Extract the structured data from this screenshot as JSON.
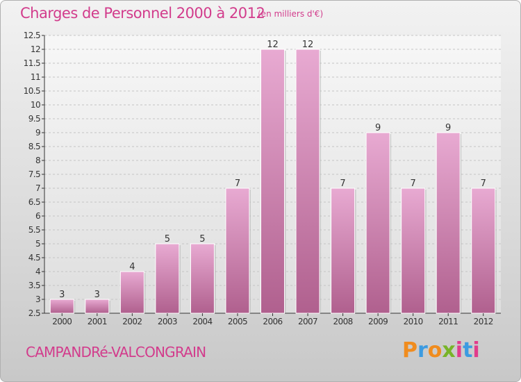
{
  "header": {
    "title": "Charges de Personnel 2000 à 2012",
    "unit": "(en milliers d'€)"
  },
  "footer": {
    "commune": "CAMPANDRé-VALCONGRAIN",
    "logo_text": "Proxiti"
  },
  "colors": {
    "accent": "#d23c8c",
    "bar_top": "#e8aad2",
    "bar_bottom": "#b0608e",
    "logo": [
      "#f08c1e",
      "#3c9be1",
      "#f08c1e",
      "#78b428",
      "#e13c8c",
      "#3c9be1",
      "#e13c8c"
    ]
  },
  "chart_data": {
    "type": "bar",
    "categories": [
      "2000",
      "2001",
      "2002",
      "2003",
      "2004",
      "2005",
      "2006",
      "2007",
      "2008",
      "2009",
      "2010",
      "2011",
      "2012"
    ],
    "values": [
      3,
      3,
      4,
      5,
      5,
      7,
      12,
      12,
      7,
      9,
      7,
      9,
      7
    ],
    "data_labels": [
      "3",
      "3",
      "4",
      "5",
      "5",
      "7",
      "12",
      "12",
      "7",
      "9",
      "7",
      "9",
      "7"
    ],
    "ylim": [
      2.5,
      12.5
    ],
    "yticks": [
      "2.5",
      "3",
      "3.5",
      "4",
      "4.5",
      "5",
      "5.5",
      "6",
      "6.5",
      "7",
      "7.5",
      "8",
      "8.5",
      "9",
      "9.5",
      "10",
      "10.5",
      "11",
      "11.5",
      "12",
      "12.5"
    ],
    "grid": true
  }
}
